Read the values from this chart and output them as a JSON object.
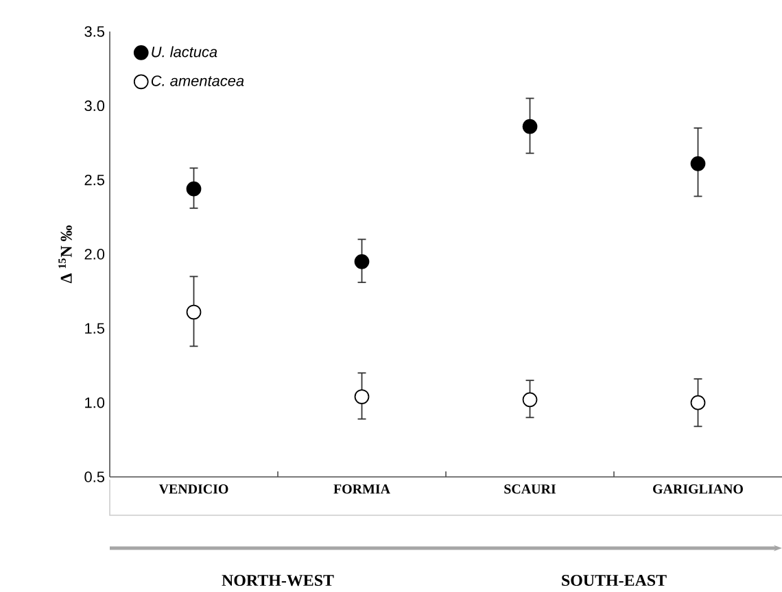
{
  "chart_data": {
    "type": "scatter",
    "ylabel": "Δ $^{15}$N ‰",
    "categories": [
      "VENDICIO",
      "FORMIA",
      "SCAURI",
      "GARIGLIANO"
    ],
    "series": [
      {
        "name": "*U. lactuca*",
        "color": "#000000",
        "values": [
          2.44,
          1.95,
          2.86,
          2.61
        ],
        "errors": [
          [
            2.31,
            2.58
          ],
          [
            1.81,
            2.1
          ],
          [
            2.68,
            3.05
          ],
          [
            2.39,
            2.85
          ]
        ]
      },
      {
        "name": "*C. amentacea*",
        "color": "#ffffff",
        "values": [
          1.61,
          1.04,
          1.02,
          1.0
        ],
        "errors": [
          [
            1.38,
            1.85
          ],
          [
            0.89,
            1.2
          ],
          [
            0.9,
            1.15
          ],
          [
            0.84,
            1.16
          ]
        ]
      }
    ],
    "ylim": [
      0.5,
      3.5
    ],
    "yticks": [
      0.5,
      {
        "value": 1.0,
        "label": "1.0"
      },
      1.5,
      {
        "value": 2.0,
        "label": "2.0"
      },
      2.5,
      {
        "value": 3.0,
        "label": "3.0"
      },
      3.5
    ],
    "annotations": [
      "NORTH-WEST",
      "SOUTH-EAST"
    ],
    "legend": "top left",
    "marker": "circle",
    "grid": false
  }
}
